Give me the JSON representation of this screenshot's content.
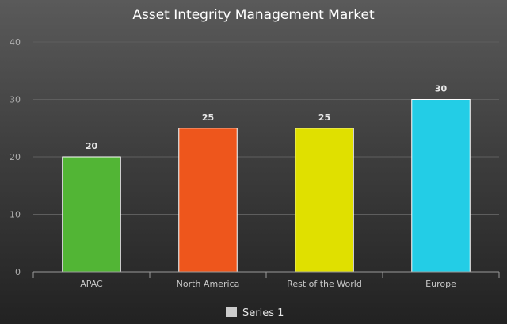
{
  "chart_data": {
    "type": "bar",
    "title": "Asset Integrity Management Market",
    "categories": [
      "APAC",
      "North America",
      "Rest of the World",
      "Europe"
    ],
    "series": [
      {
        "name": "Series 1",
        "values": [
          20,
          25,
          25,
          30
        ]
      }
    ],
    "bar_colors": [
      "#52b535",
      "#ee561c",
      "#e0e000",
      "#23cde6"
    ],
    "yticks": [
      0,
      10,
      20,
      30,
      40
    ],
    "ylim": [
      0,
      40
    ],
    "grid": true,
    "legend": "bottom-center",
    "legend_color": "#cccccc"
  }
}
